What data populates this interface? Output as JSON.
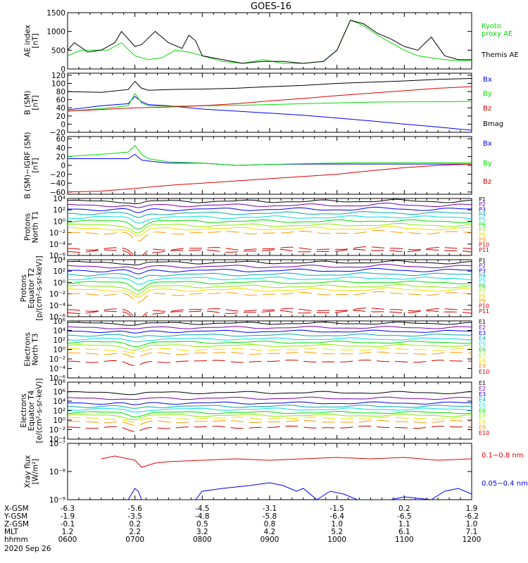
{
  "title": "GOES-16",
  "footer": {
    "date": "2020 Sep 26",
    "row_labels": [
      "X-GSM",
      "Y-GSM",
      "Z-GSM",
      "MLT",
      "hhmm"
    ],
    "columns": [
      [
        "-6.3",
        "-1.9",
        "-0.1",
        "1.2",
        "0600"
      ],
      [
        "-5.6",
        "-3.5",
        "0.2",
        "2.2",
        "0700"
      ],
      [
        "-4.5",
        "-4.8",
        "0.5",
        "3.2",
        "0800"
      ],
      [
        "-3.1",
        "-5.8",
        "0.8",
        "4.2",
        "0900"
      ],
      [
        "-1.5",
        "-6.4",
        "1.0",
        "5.2",
        "1000"
      ],
      [
        "0.2",
        "-6.5",
        "1.1",
        "6.1",
        "1100"
      ],
      [
        "1.9",
        "-6.2",
        "1.0",
        "7.1",
        "1200"
      ]
    ]
  },
  "colors": {
    "black": "#000000",
    "red": "#dd0000",
    "green": "#00dd00",
    "blue": "#0000ee",
    "violet": "#7700aa",
    "teal": "#00aaaa",
    "cyan": "#00dddd",
    "lime": "#88ee00",
    "yellow": "#eedd00",
    "orange": "#ff9900",
    "darkred": "#cc0000"
  },
  "chart_data": [
    {
      "type": "line",
      "ylabel": [
        "AE index",
        "[nT]"
      ],
      "ylim": [
        0,
        1500
      ],
      "yticks": [
        {
          "value": 0,
          "label": "0"
        },
        {
          "value": 500,
          "label": "500"
        },
        {
          "value": 1000,
          "label": "1000"
        },
        {
          "value": 1500,
          "label": "1500"
        }
      ],
      "series": [
        {
          "name": "Kyoto proxy AE",
          "color": "#00dd00",
          "x": [
            6.0,
            6.2,
            6.4,
            6.6,
            6.8,
            7.0,
            7.2,
            7.4,
            7.6,
            7.8,
            8.0,
            8.3,
            8.6,
            8.9,
            9.2,
            9.5,
            9.8,
            10.0,
            10.1,
            10.2,
            10.4,
            10.6,
            10.8,
            11.0,
            11.2,
            11.4,
            11.6,
            11.8,
            12.0
          ],
          "y": [
            350,
            500,
            500,
            500,
            700,
            350,
            250,
            300,
            500,
            450,
            350,
            200,
            150,
            250,
            150,
            150,
            200,
            500,
            900,
            1300,
            1150,
            900,
            700,
            500,
            350,
            300,
            250,
            220,
            220
          ]
        },
        {
          "name": "Themis AE",
          "color": "#000000",
          "x": [
            6.0,
            6.1,
            6.3,
            6.5,
            6.7,
            6.8,
            7.0,
            7.1,
            7.3,
            7.5,
            7.7,
            7.8,
            7.9,
            8.0,
            8.3,
            8.6,
            8.9,
            9.2,
            9.5,
            9.8,
            10.0,
            10.1,
            10.2,
            10.4,
            10.6,
            10.8,
            11.0,
            11.2,
            11.4,
            11.6,
            11.8,
            12.0
          ],
          "y": [
            500,
            700,
            450,
            500,
            700,
            1000,
            600,
            650,
            1000,
            700,
            550,
            900,
            750,
            350,
            250,
            150,
            200,
            200,
            150,
            200,
            500,
            900,
            1300,
            1200,
            950,
            800,
            600,
            500,
            850,
            350,
            250,
            250
          ]
        }
      ]
    },
    {
      "type": "line",
      "ylabel": [
        "B (SM)",
        "[nT]"
      ],
      "ylim": [
        -20,
        125
      ],
      "yticks": [
        {
          "value": -20,
          "label": "−20"
        },
        {
          "value": 0,
          "label": "0"
        },
        {
          "value": 20,
          "label": "20"
        },
        {
          "value": 40,
          "label": "40"
        },
        {
          "value": 60,
          "label": "60"
        },
        {
          "value": 80,
          "label": "80"
        },
        {
          "value": 100,
          "label": "100"
        },
        {
          "value": 120,
          "label": "120"
        }
      ],
      "series": [
        {
          "name": "Bx",
          "color": "#0000ee",
          "x": [
            6.0,
            6.5,
            6.9,
            7.0,
            7.1,
            7.2,
            7.5,
            8.0,
            8.5,
            9.0,
            9.5,
            10.0,
            10.5,
            11.0,
            11.5,
            12.0
          ],
          "y": [
            35,
            45,
            50,
            68,
            55,
            48,
            45,
            37,
            32,
            27,
            22,
            15,
            8,
            0,
            -7,
            -15
          ]
        },
        {
          "name": "By",
          "color": "#00dd00",
          "x": [
            6.0,
            6.5,
            6.9,
            7.0,
            7.1,
            7.2,
            7.5,
            8.0,
            8.5,
            9.0,
            9.5,
            10.0,
            10.5,
            11.0,
            11.5,
            12.0
          ],
          "y": [
            32,
            38,
            45,
            75,
            52,
            45,
            44,
            45,
            46,
            48,
            50,
            52,
            54,
            55,
            55,
            56
          ]
        },
        {
          "name": "Bz",
          "color": "#dd0000",
          "x": [
            6.0,
            6.5,
            7.0,
            7.5,
            8.0,
            8.5,
            9.0,
            9.5,
            10.0,
            10.5,
            11.0,
            11.5,
            12.0
          ],
          "y": [
            32,
            36,
            40,
            42,
            45,
            50,
            57,
            63,
            70,
            76,
            82,
            88,
            92
          ]
        },
        {
          "name": "Bmag",
          "color": "#000000",
          "x": [
            6.0,
            6.5,
            6.9,
            7.0,
            7.1,
            7.2,
            7.5,
            8.0,
            8.5,
            9.0,
            9.5,
            10.0,
            10.5,
            11.0,
            11.5,
            12.0
          ],
          "y": [
            80,
            78,
            85,
            105,
            88,
            83,
            85,
            86,
            88,
            92,
            95,
            100,
            103,
            106,
            110,
            112
          ]
        }
      ]
    },
    {
      "type": "line",
      "ylabel": [
        "B (SM)−IGRF (SM)",
        "[nT]"
      ],
      "ylim": [
        -65,
        65
      ],
      "yticks": [
        {
          "value": -60,
          "label": "−60"
        },
        {
          "value": -40,
          "label": "−40"
        },
        {
          "value": -20,
          "label": "−20"
        },
        {
          "value": 0,
          "label": "0"
        },
        {
          "value": 20,
          "label": "20"
        },
        {
          "value": 40,
          "label": "40"
        },
        {
          "value": 60,
          "label": "60"
        }
      ],
      "series": [
        {
          "name": "Bx",
          "color": "#0000ee",
          "x": [
            6.0,
            6.5,
            6.9,
            7.0,
            7.1,
            7.2,
            7.5,
            8.0,
            8.5,
            9.0,
            9.5,
            10.0,
            10.5,
            11.0,
            11.5,
            12.0
          ],
          "y": [
            15,
            15,
            15,
            25,
            12,
            10,
            5,
            5,
            0,
            2,
            3,
            3,
            3,
            3,
            3,
            3
          ]
        },
        {
          "name": "By",
          "color": "#00dd00",
          "x": [
            6.0,
            6.5,
            6.9,
            7.0,
            7.1,
            7.2,
            7.5,
            8.0,
            8.5,
            9.0,
            9.5,
            10.0,
            10.5,
            11.0,
            11.5,
            12.0
          ],
          "y": [
            20,
            25,
            30,
            45,
            25,
            15,
            8,
            5,
            0,
            2,
            4,
            5,
            6,
            6,
            6,
            6
          ]
        },
        {
          "name": "Bz",
          "color": "#dd0000",
          "x": [
            6.0,
            6.5,
            7.0,
            7.5,
            8.0,
            8.5,
            9.0,
            9.5,
            10.0,
            10.5,
            11.0,
            11.5,
            12.0
          ],
          "y": [
            -60,
            -58,
            -52,
            -45,
            -40,
            -35,
            -30,
            -25,
            -20,
            -12,
            -5,
            0,
            3
          ]
        }
      ]
    },
    {
      "type": "line",
      "ylabel": [
        "Protons",
        "North T1"
      ],
      "ylim": [
        -6,
        4
      ],
      "yscale": "log",
      "yticks": [
        {
          "value": -6,
          "label": "10⁻⁶"
        },
        {
          "value": -4,
          "label": "10⁻⁴"
        },
        {
          "value": -2,
          "label": "10⁻²"
        },
        {
          "value": 0,
          "label": "10⁰"
        },
        {
          "value": 2,
          "label": "10²"
        },
        {
          "value": 4,
          "label": "10⁴"
        }
      ],
      "series": [
        {
          "name": "P1",
          "base": 3.5,
          "color": "#000000"
        },
        {
          "name": "P2",
          "base": 2.8,
          "color": "#7700aa"
        },
        {
          "name": "P3",
          "base": 2.1,
          "color": "#0000ee"
        },
        {
          "name": "P4",
          "base": 1.4,
          "color": "#00aaaa"
        },
        {
          "name": "P5",
          "base": 0.7,
          "color": "#00dddd"
        },
        {
          "name": "P6",
          "base": 0.0,
          "color": "#00dd00"
        },
        {
          "name": "P7",
          "base": -0.7,
          "color": "#88ee00"
        },
        {
          "name": "P8",
          "base": -1.3,
          "color": "#eedd00"
        },
        {
          "name": "P9",
          "base": -2.0,
          "color": "#ff9900"
        },
        {
          "name": "P10",
          "base": -4.8,
          "color": "#dd0000"
        },
        {
          "name": "P11",
          "base": -5.2,
          "color": "#cc0000"
        }
      ]
    },
    {
      "type": "line",
      "ylabel": [
        "Protons",
        "Equator T2",
        "[p/(cm²-s-sr-keV)]"
      ],
      "ylim": [
        -6,
        4
      ],
      "yscale": "log",
      "yticks": [
        {
          "value": -6,
          "label": "10⁻⁶"
        },
        {
          "value": -4,
          "label": "10⁻⁴"
        },
        {
          "value": -2,
          "label": "10⁻²"
        },
        {
          "value": 0,
          "label": "10⁰"
        },
        {
          "value": 2,
          "label": "10²"
        },
        {
          "value": 4,
          "label": "10⁴"
        }
      ],
      "series": [
        {
          "name": "P1",
          "base": 3.5,
          "color": "#000000"
        },
        {
          "name": "P2",
          "base": 2.8,
          "color": "#7700aa"
        },
        {
          "name": "P3",
          "base": 2.1,
          "color": "#0000ee"
        },
        {
          "name": "P4",
          "base": 1.4,
          "color": "#00aaaa"
        },
        {
          "name": "P5",
          "base": 0.7,
          "color": "#00dddd"
        },
        {
          "name": "P6",
          "base": 0.0,
          "color": "#00dd00"
        },
        {
          "name": "P7",
          "base": -0.7,
          "color": "#88ee00"
        },
        {
          "name": "P8",
          "base": -1.3,
          "color": "#eedd00"
        },
        {
          "name": "P9",
          "base": -2.0,
          "color": "#ff9900"
        },
        {
          "name": "P10",
          "base": -4.8,
          "color": "#dd0000"
        },
        {
          "name": "P11",
          "base": -5.2,
          "color": "#cc0000"
        }
      ]
    },
    {
      "type": "line",
      "ylabel": [
        "Electrons",
        "North T3"
      ],
      "ylim": [
        -6,
        6
      ],
      "yscale": "log",
      "yticks": [
        {
          "value": -6,
          "label": "10⁻⁶"
        },
        {
          "value": -4,
          "label": "10⁻⁴"
        },
        {
          "value": -2,
          "label": "10⁻²"
        },
        {
          "value": 0,
          "label": "10⁰"
        },
        {
          "value": 2,
          "label": "10²"
        },
        {
          "value": 4,
          "label": "10⁴"
        },
        {
          "value": 6,
          "label": "10⁶"
        }
      ],
      "series": [
        {
          "name": "E1",
          "base": 5.5,
          "color": "#000000"
        },
        {
          "name": "E2",
          "base": 4.6,
          "color": "#7700aa"
        },
        {
          "name": "E3",
          "base": 3.8,
          "color": "#0000ee"
        },
        {
          "name": "E4",
          "base": 3.0,
          "color": "#00aaaa"
        },
        {
          "name": "E5",
          "base": 2.2,
          "color": "#00dddd"
        },
        {
          "name": "E6",
          "base": 1.5,
          "color": "#00dd00"
        },
        {
          "name": "E7",
          "base": 0.8,
          "color": "#88ee00"
        },
        {
          "name": "E8",
          "base": 0.0,
          "color": "#eedd00"
        },
        {
          "name": "E9",
          "base": -0.8,
          "color": "#ff9900"
        },
        {
          "name": "E10",
          "base": -2.5,
          "color": "#cc0000"
        }
      ]
    },
    {
      "type": "line",
      "ylabel": [
        "Electrons",
        "Equator T4",
        "[e/(cm²-s-sr-keV)]"
      ],
      "ylim": [
        -4,
        8
      ],
      "yscale": "log",
      "yticks": [
        {
          "value": -4,
          "label": "10⁻⁴"
        },
        {
          "value": -2,
          "label": "10⁻²"
        },
        {
          "value": 0,
          "label": "10⁰"
        },
        {
          "value": 2,
          "label": "10²"
        },
        {
          "value": 4,
          "label": "10⁴"
        },
        {
          "value": 6,
          "label": "10⁶"
        },
        {
          "value": 8,
          "label": "10⁸"
        }
      ],
      "series": [
        {
          "name": "E1",
          "base": 5.8,
          "color": "#000000"
        },
        {
          "name": "E2",
          "base": 4.6,
          "color": "#7700aa"
        },
        {
          "name": "E3",
          "base": 3.6,
          "color": "#0000ee"
        },
        {
          "name": "E4",
          "base": 2.9,
          "color": "#00aaaa"
        },
        {
          "name": "E5",
          "base": 2.3,
          "color": "#00dddd"
        },
        {
          "name": "E6",
          "base": 1.6,
          "color": "#00dd00"
        },
        {
          "name": "E7",
          "base": 1.0,
          "color": "#88ee00"
        },
        {
          "name": "E8",
          "base": 0.4,
          "color": "#eedd00"
        },
        {
          "name": "E9",
          "base": -0.3,
          "color": "#ff9900"
        },
        {
          "name": "E10",
          "base": -1.5,
          "color": "#cc0000"
        }
      ]
    },
    {
      "type": "line",
      "ylabel": [
        "Xray flux",
        "[W/m²]"
      ],
      "ylim": [
        -9,
        -7
      ],
      "yscale": "log",
      "yticks": [
        {
          "value": -9,
          "label": "10⁻⁹"
        },
        {
          "value": -8,
          "label": "10⁻⁸"
        },
        {
          "value": -7,
          "label": "10⁻⁷"
        }
      ],
      "series": [
        {
          "name": "0.1−0.8 nm",
          "color": "#dd0000",
          "x": [
            6.5,
            6.7,
            7.0,
            7.1,
            7.3,
            7.5,
            8.0,
            8.5,
            9.0,
            9.5,
            10.0,
            10.5,
            11.0,
            11.5,
            12.0
          ],
          "y": [
            -7.55,
            -7.45,
            -7.6,
            -7.85,
            -7.7,
            -7.65,
            -7.6,
            -7.55,
            -7.6,
            -7.55,
            -7.5,
            -7.55,
            -7.5,
            -7.6,
            -7.55
          ]
        },
        {
          "name": "0.05−0.4 nm",
          "color": "#0000ee",
          "x": [
            6.9,
            7.0,
            7.05,
            7.1,
            7.5,
            7.9,
            8.0,
            8.3,
            8.7,
            9.0,
            9.2,
            9.4,
            9.5,
            9.7,
            9.9,
            10.1,
            10.3,
            10.5,
            10.8,
            11.0,
            11.4,
            11.6,
            11.8,
            12.0
          ],
          "y": [
            -9.0,
            -8.6,
            -8.7,
            -9.0,
            -9.0,
            -9.0,
            -8.7,
            -8.6,
            -8.5,
            -8.4,
            -8.5,
            -8.7,
            -8.6,
            -9.0,
            -8.7,
            -8.8,
            -9.0,
            -9.0,
            -9.0,
            -8.9,
            -9.0,
            -8.7,
            -8.6,
            -8.8
          ]
        }
      ]
    }
  ]
}
